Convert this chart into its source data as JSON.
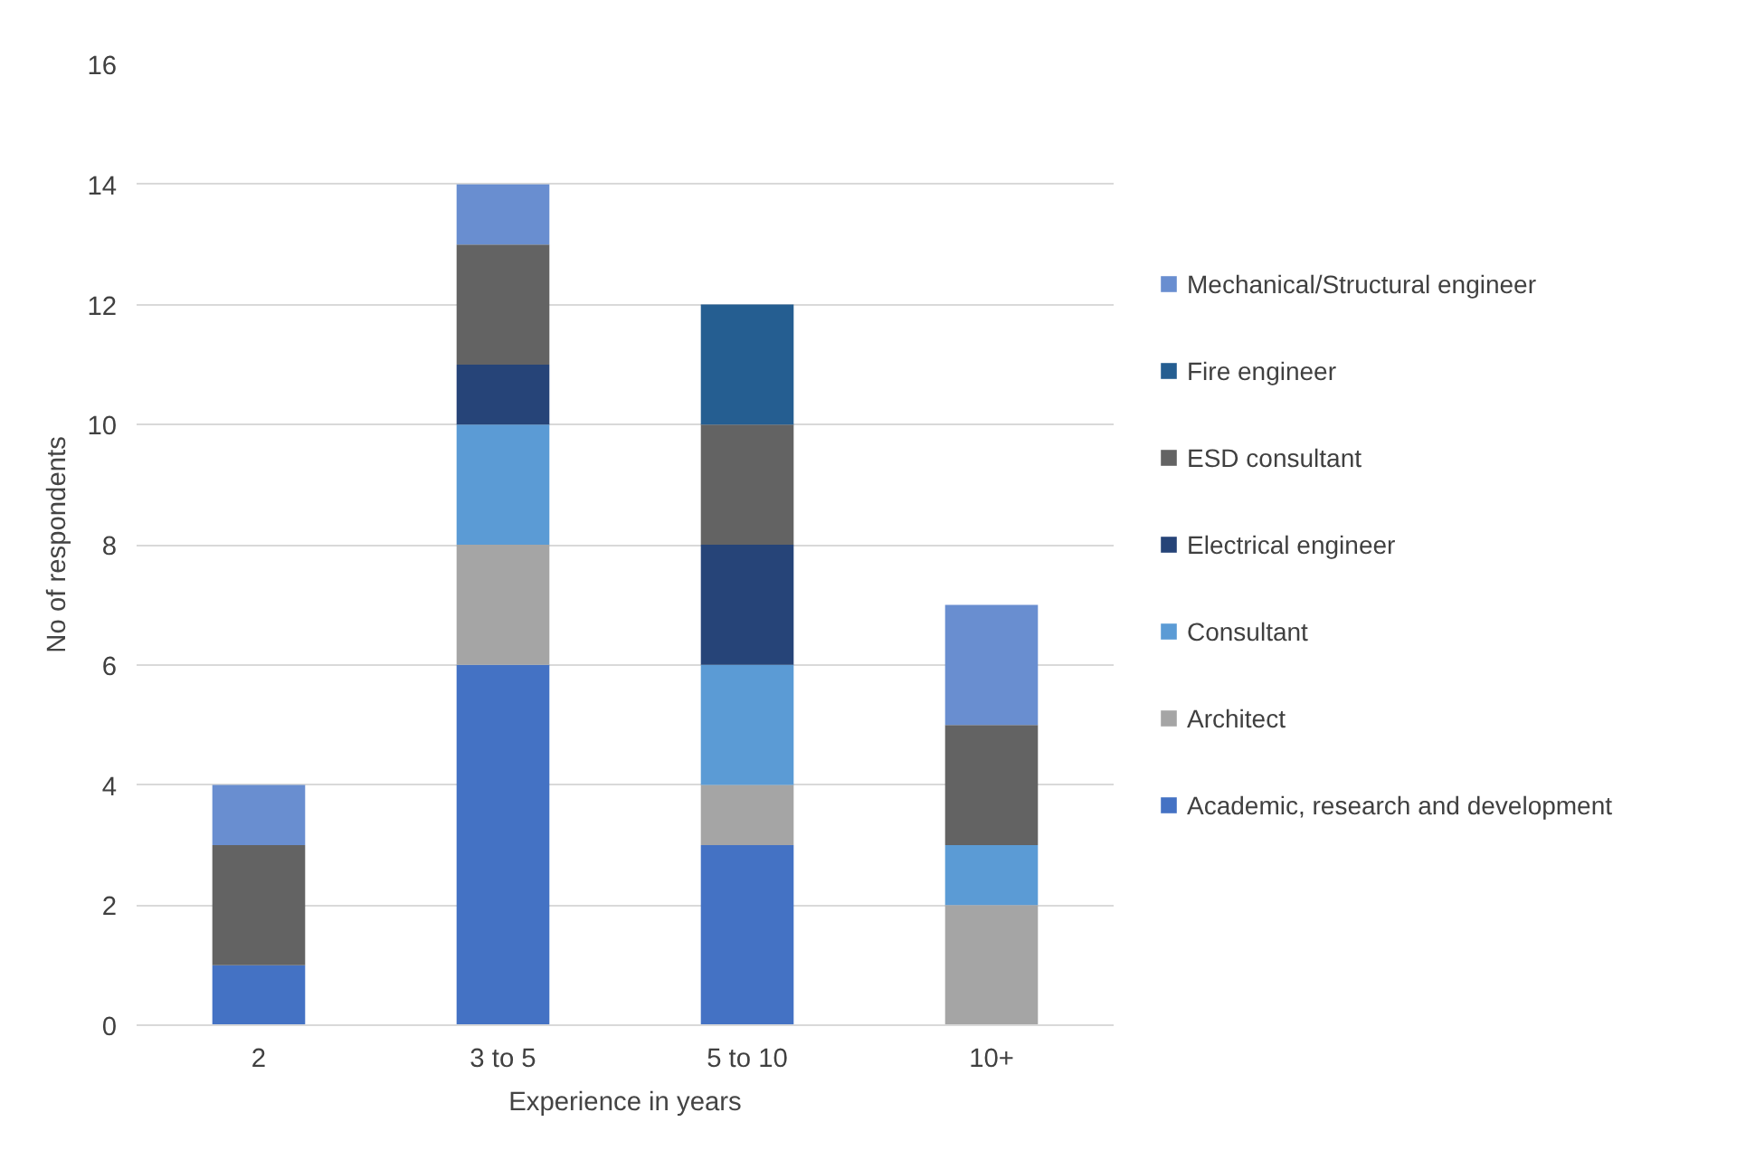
{
  "chart_data": {
    "type": "bar",
    "stacked": true,
    "xlabel": "Experience in years",
    "ylabel": "No of respondents",
    "categories": [
      "2",
      "3 to 5",
      "5 to 10",
      "10+"
    ],
    "series": [
      {
        "name": "Academic, research and development",
        "color": "#4472c4",
        "values": [
          1,
          6,
          3,
          0
        ]
      },
      {
        "name": "Architect",
        "color": "#a5a5a5",
        "values": [
          0,
          2,
          1,
          2
        ]
      },
      {
        "name": "Consultant",
        "color": "#5b9bd5",
        "values": [
          0,
          2,
          2,
          1
        ]
      },
      {
        "name": "Electrical engineer",
        "color": "#264478",
        "values": [
          0,
          1,
          2,
          0
        ]
      },
      {
        "name": "ESD consultant",
        "color": "#636363",
        "values": [
          2,
          2,
          2,
          2
        ]
      },
      {
        "name": "Fire engineer",
        "color": "#255e91",
        "values": [
          0,
          0,
          2,
          0
        ]
      },
      {
        "name": "Mechanical/Structural engineer",
        "color": "#698ed0",
        "values": [
          1,
          1,
          0,
          2
        ]
      }
    ],
    "ylim": [
      0,
      16
    ],
    "yticks": [
      0,
      2,
      4,
      6,
      8,
      10,
      12,
      14,
      16
    ],
    "grid": "y",
    "legend": "right"
  }
}
